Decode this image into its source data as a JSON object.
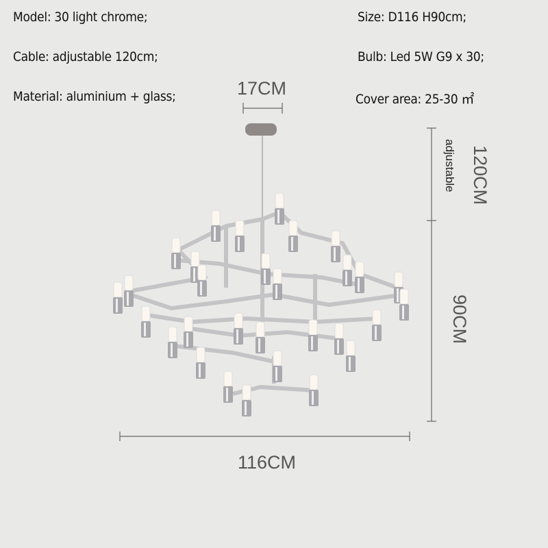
{
  "specs": {
    "model": "Model: 30 light chrome;",
    "size": "Size: D116 H90cm;",
    "cable": "Cable: adjustable 120cm;",
    "bulb": "Bulb: Led 5W G9 x 30;",
    "material": "Material: aluminium + glass;",
    "cover_area": "Cover area: 25-30 ㎡"
  },
  "dimensions": {
    "canopy_width": "17CM",
    "cable_length": "120CM",
    "cable_note": "adjustable",
    "height": "90CM",
    "diameter": "116CM"
  },
  "colors": {
    "background": "#e9e9e8",
    "chrome": "#b8b8ba",
    "dimension_line": "#666666"
  }
}
